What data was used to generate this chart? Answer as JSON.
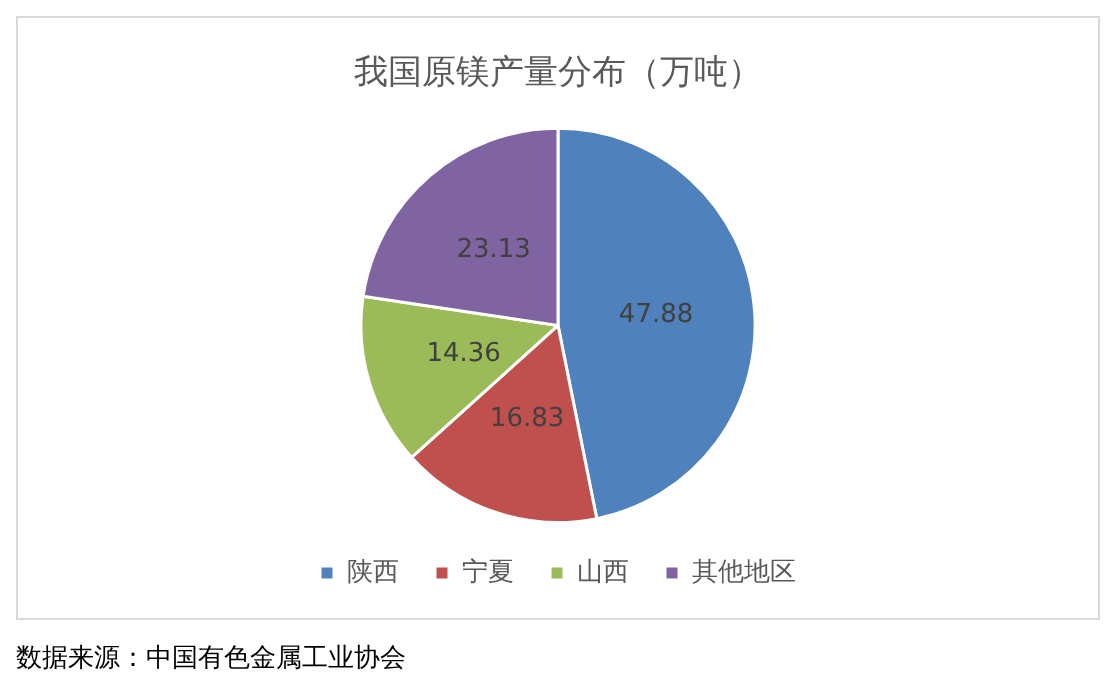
{
  "chart_data": {
    "type": "pie",
    "title": "我国原镁产量分布（万吨）",
    "categories": [
      "陕西",
      "宁夏",
      "山西",
      "其他地区"
    ],
    "values": [
      47.88,
      16.83,
      14.36,
      23.13
    ],
    "colors": [
      "#4f81bd",
      "#c0504d",
      "#9bbb59",
      "#8064a2"
    ],
    "data_labels": true,
    "legend": "bottom",
    "annotations": [
      "数据来源：中国有色金属工业协会"
    ]
  }
}
